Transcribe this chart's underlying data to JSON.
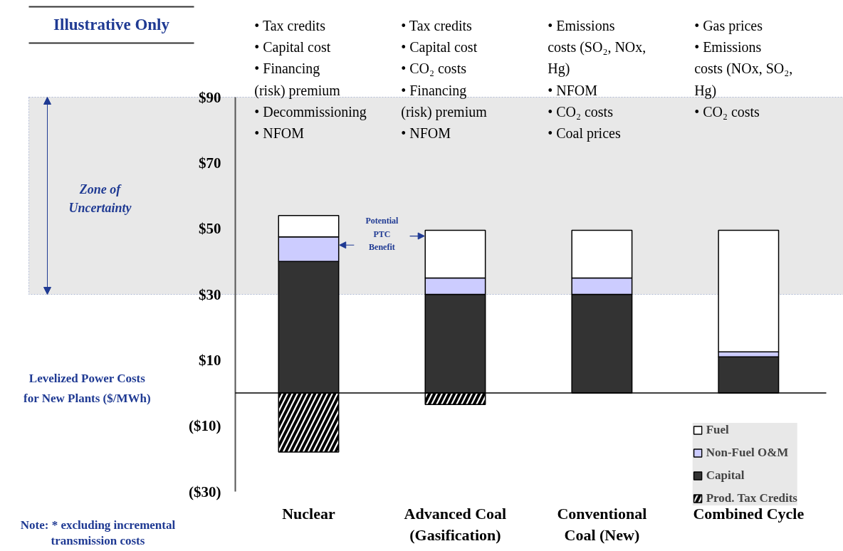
{
  "chart_data": {
    "type": "bar",
    "stacked": true,
    "title": "Illustrative Only",
    "ylabel": "Levelized Power Costs for New Plants ($/MWh)",
    "categories": [
      "Nuclear",
      "Advanced Coal (Gasification)",
      "Conventional Coal (New)",
      "Combined Cycle"
    ],
    "series": [
      {
        "name": "Capital",
        "color": "#333333",
        "values": [
          40,
          30,
          30,
          11
        ]
      },
      {
        "name": "Non-Fuel O&M",
        "color": "#ccccff",
        "values": [
          7.5,
          5,
          5,
          1.5
        ]
      },
      {
        "name": "Fuel",
        "color": "#ffffff",
        "values": [
          6.5,
          14.5,
          14.5,
          37
        ]
      },
      {
        "name": "Prod. Tax Credits",
        "color": "#ffffff",
        "values": [
          -18,
          -3.5,
          null,
          null
        ]
      }
    ],
    "ylim": [
      -30,
      90
    ],
    "yticks": [
      {
        "value": 90,
        "label": "$90"
      },
      {
        "value": 70,
        "label": "$70"
      },
      {
        "value": 50,
        "label": "$50"
      },
      {
        "value": 30,
        "label": "$30"
      },
      {
        "value": 10,
        "label": "$10"
      },
      {
        "value": -10,
        "label": "($10)"
      },
      {
        "value": -30,
        "label": "($30)"
      }
    ],
    "bands": [
      {
        "axis": "y",
        "from": 30,
        "to": 90,
        "label": "Zone of Uncertainty",
        "color": "#e8e8e8"
      }
    ],
    "annotations": [
      "• Tax credits\n• Capital cost\n• Financing (risk) premium\n• Decommissioning\n• NFOM",
      "• Tax credits\n• Capital cost\n• CO₂ costs\n• Financing (risk) premium\n• NFOM",
      "• Emissions costs (SO₂, NOx, Hg)\n• NFOM\n• CO₂ costs\n• Coal prices",
      "• Gas prices\n• Emissions costs (NOx, SO₂, Hg)\n• CO₂ costs",
      "Potential PTC Benefit",
      "Note: * excluding incremental transmission costs"
    ],
    "legend": "bottom right",
    "grid": false
  }
}
